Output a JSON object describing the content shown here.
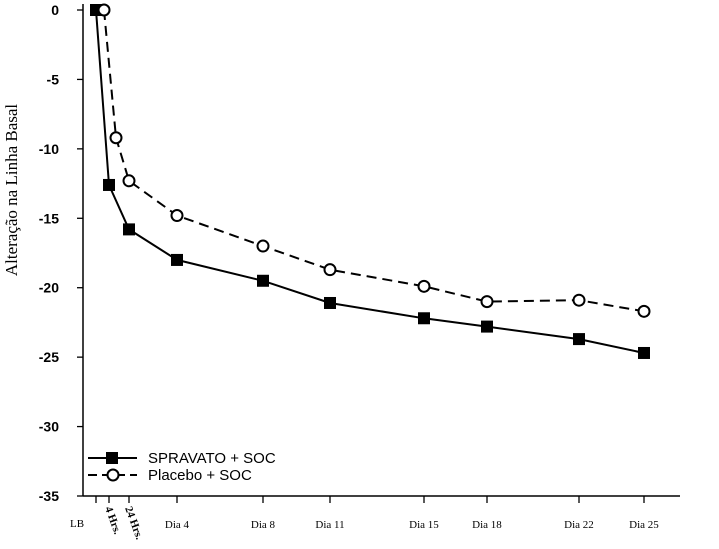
{
  "chart_data": {
    "type": "line",
    "xlabel": "",
    "ylabel": "Alteração na Linha Basal",
    "ylim": [
      -35,
      0
    ],
    "yticks": [
      0,
      -5,
      -10,
      -15,
      -20,
      -25,
      -30,
      -35
    ],
    "ytick_labels": [
      "0",
      "-5",
      "-10",
      "-15",
      "-20",
      "-25",
      "-30",
      "-35"
    ],
    "categories": [
      "LB",
      "4 Hrs.",
      "24 Hrs.",
      "Dia 4",
      "Dia 8",
      "Dia 11",
      "Dia 15",
      "Dia 18",
      "Dia 22",
      "Dia 25"
    ],
    "series": [
      {
        "name": "SPRAVATO + SOC",
        "values": [
          0,
          -12.6,
          -15.8,
          -18.0,
          -19.5,
          -21.1,
          -22.2,
          -22.8,
          -23.7,
          -24.7
        ],
        "marker": "square-filled",
        "line_style": "solid",
        "color": "#000000"
      },
      {
        "name": "Placebo + SOC",
        "values": [
          0,
          -9.2,
          -12.3,
          -14.8,
          -17.0,
          -18.7,
          -19.9,
          -21.0,
          -20.9,
          -21.7
        ],
        "marker": "circle-open",
        "line_style": "dashed",
        "color": "#000000"
      }
    ],
    "legend_position": "bottom-left",
    "grid": false
  }
}
